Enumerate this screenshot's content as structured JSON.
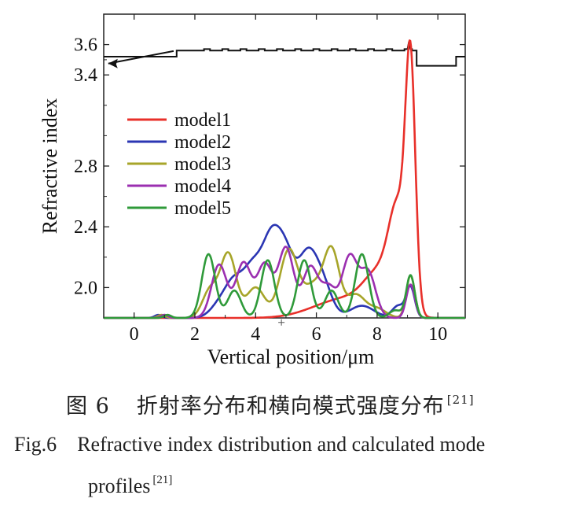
{
  "chart_data": {
    "type": "line",
    "xlabel": "Vertical position/μm",
    "ylabel": "Refractive index",
    "xlim": [
      -1.0,
      10.9
    ],
    "ylim": [
      1.8,
      3.8
    ],
    "xticks": [
      0,
      2,
      4,
      6,
      8,
      10
    ],
    "yticks": [
      2.0,
      2.4,
      2.8,
      3.4,
      3.6
    ],
    "legend_position": "upper-left",
    "index_profile": {
      "x": [
        -1.0,
        1.4,
        1.4,
        2.3,
        2.3,
        2.5,
        2.5,
        2.9,
        2.9,
        3.1,
        3.1,
        3.5,
        3.5,
        3.7,
        3.7,
        4.1,
        4.1,
        4.3,
        4.3,
        4.7,
        4.7,
        4.9,
        4.9,
        5.3,
        5.3,
        5.5,
        5.5,
        5.9,
        5.9,
        6.1,
        6.1,
        6.5,
        6.5,
        6.7,
        6.7,
        7.1,
        7.1,
        7.3,
        7.3,
        7.7,
        7.7,
        7.9,
        7.9,
        8.3,
        8.3,
        8.5,
        8.5,
        8.9,
        8.9,
        9.0,
        9.05,
        9.1,
        9.15,
        9.15,
        9.3,
        9.3,
        10.6,
        10.6,
        10.9
      ],
      "y": [
        3.52,
        3.52,
        3.56,
        3.56,
        3.57,
        3.57,
        3.56,
        3.56,
        3.57,
        3.57,
        3.56,
        3.56,
        3.57,
        3.57,
        3.56,
        3.56,
        3.57,
        3.57,
        3.56,
        3.56,
        3.57,
        3.57,
        3.56,
        3.56,
        3.57,
        3.57,
        3.56,
        3.56,
        3.57,
        3.57,
        3.56,
        3.56,
        3.57,
        3.57,
        3.56,
        3.56,
        3.57,
        3.57,
        3.56,
        3.56,
        3.57,
        3.57,
        3.56,
        3.56,
        3.57,
        3.57,
        3.56,
        3.56,
        3.57,
        3.57,
        3.62,
        3.57,
        3.57,
        3.56,
        3.56,
        3.46,
        3.46,
        3.52,
        3.52
      ]
    },
    "series": [
      {
        "name": "model1",
        "color": "#e8302a",
        "peaks": [
          [
            9.1,
            1.52,
            0.16
          ],
          [
            8.7,
            0.62,
            0.3
          ],
          [
            8.1,
            0.25,
            0.5
          ],
          [
            7.2,
            0.1,
            0.8
          ],
          [
            6.2,
            0.05,
            0.8
          ]
        ]
      },
      {
        "name": "model2",
        "color": "#2b36b3",
        "peaks": [
          [
            4.5,
            0.46,
            0.3
          ],
          [
            5.0,
            0.38,
            0.3
          ],
          [
            5.7,
            0.38,
            0.3
          ],
          [
            6.2,
            0.22,
            0.3
          ],
          [
            3.9,
            0.3,
            0.3
          ],
          [
            3.3,
            0.22,
            0.3
          ],
          [
            2.8,
            0.08,
            0.3
          ],
          [
            7.5,
            0.08,
            0.4
          ],
          [
            8.7,
            0.08,
            0.2
          ],
          [
            9.1,
            0.2,
            0.14
          ],
          [
            0.8,
            0.02,
            0.12
          ]
        ]
      },
      {
        "name": "model3",
        "color": "#a7a52a",
        "peaks": [
          [
            3.1,
            0.42,
            0.26
          ],
          [
            6.5,
            0.44,
            0.26
          ],
          [
            5.1,
            0.45,
            0.3
          ],
          [
            4.0,
            0.2,
            0.3
          ],
          [
            5.9,
            0.2,
            0.3
          ],
          [
            2.5,
            0.18,
            0.25
          ],
          [
            7.3,
            0.15,
            0.3
          ],
          [
            8.0,
            0.06,
            0.3
          ],
          [
            9.1,
            0.28,
            0.14
          ],
          [
            0.9,
            0.02,
            0.12
          ]
        ]
      },
      {
        "name": "model4",
        "color": "#9b2fb0",
        "peaks": [
          [
            2.8,
            0.35,
            0.25
          ],
          [
            3.6,
            0.36,
            0.25
          ],
          [
            4.3,
            0.35,
            0.25
          ],
          [
            5.0,
            0.46,
            0.25
          ],
          [
            5.8,
            0.33,
            0.25
          ],
          [
            6.4,
            0.2,
            0.25
          ],
          [
            7.1,
            0.4,
            0.25
          ],
          [
            7.7,
            0.3,
            0.25
          ],
          [
            9.1,
            0.22,
            0.14
          ],
          [
            1.0,
            0.02,
            0.12
          ]
        ]
      },
      {
        "name": "model5",
        "color": "#2f9a3a",
        "peaks": [
          [
            2.45,
            0.42,
            0.22
          ],
          [
            4.4,
            0.38,
            0.22
          ],
          [
            5.6,
            0.38,
            0.22
          ],
          [
            7.5,
            0.42,
            0.22
          ],
          [
            3.3,
            0.18,
            0.22
          ],
          [
            6.5,
            0.18,
            0.22
          ],
          [
            8.6,
            0.05,
            0.2
          ],
          [
            9.1,
            0.28,
            0.14
          ],
          [
            1.1,
            0.02,
            0.12
          ]
        ]
      }
    ]
  },
  "caption": {
    "cn_num": "图 6",
    "cn_text": "折射率分布和横向模式强度分布",
    "cn_ref": "[21]",
    "en_num": "Fig.6",
    "en_line1": "Refractive index distribution and calculated mode",
    "en_line2": "profiles",
    "en_ref": "[21]"
  },
  "colors": {
    "axis": "#222222",
    "profile": "#111111"
  }
}
